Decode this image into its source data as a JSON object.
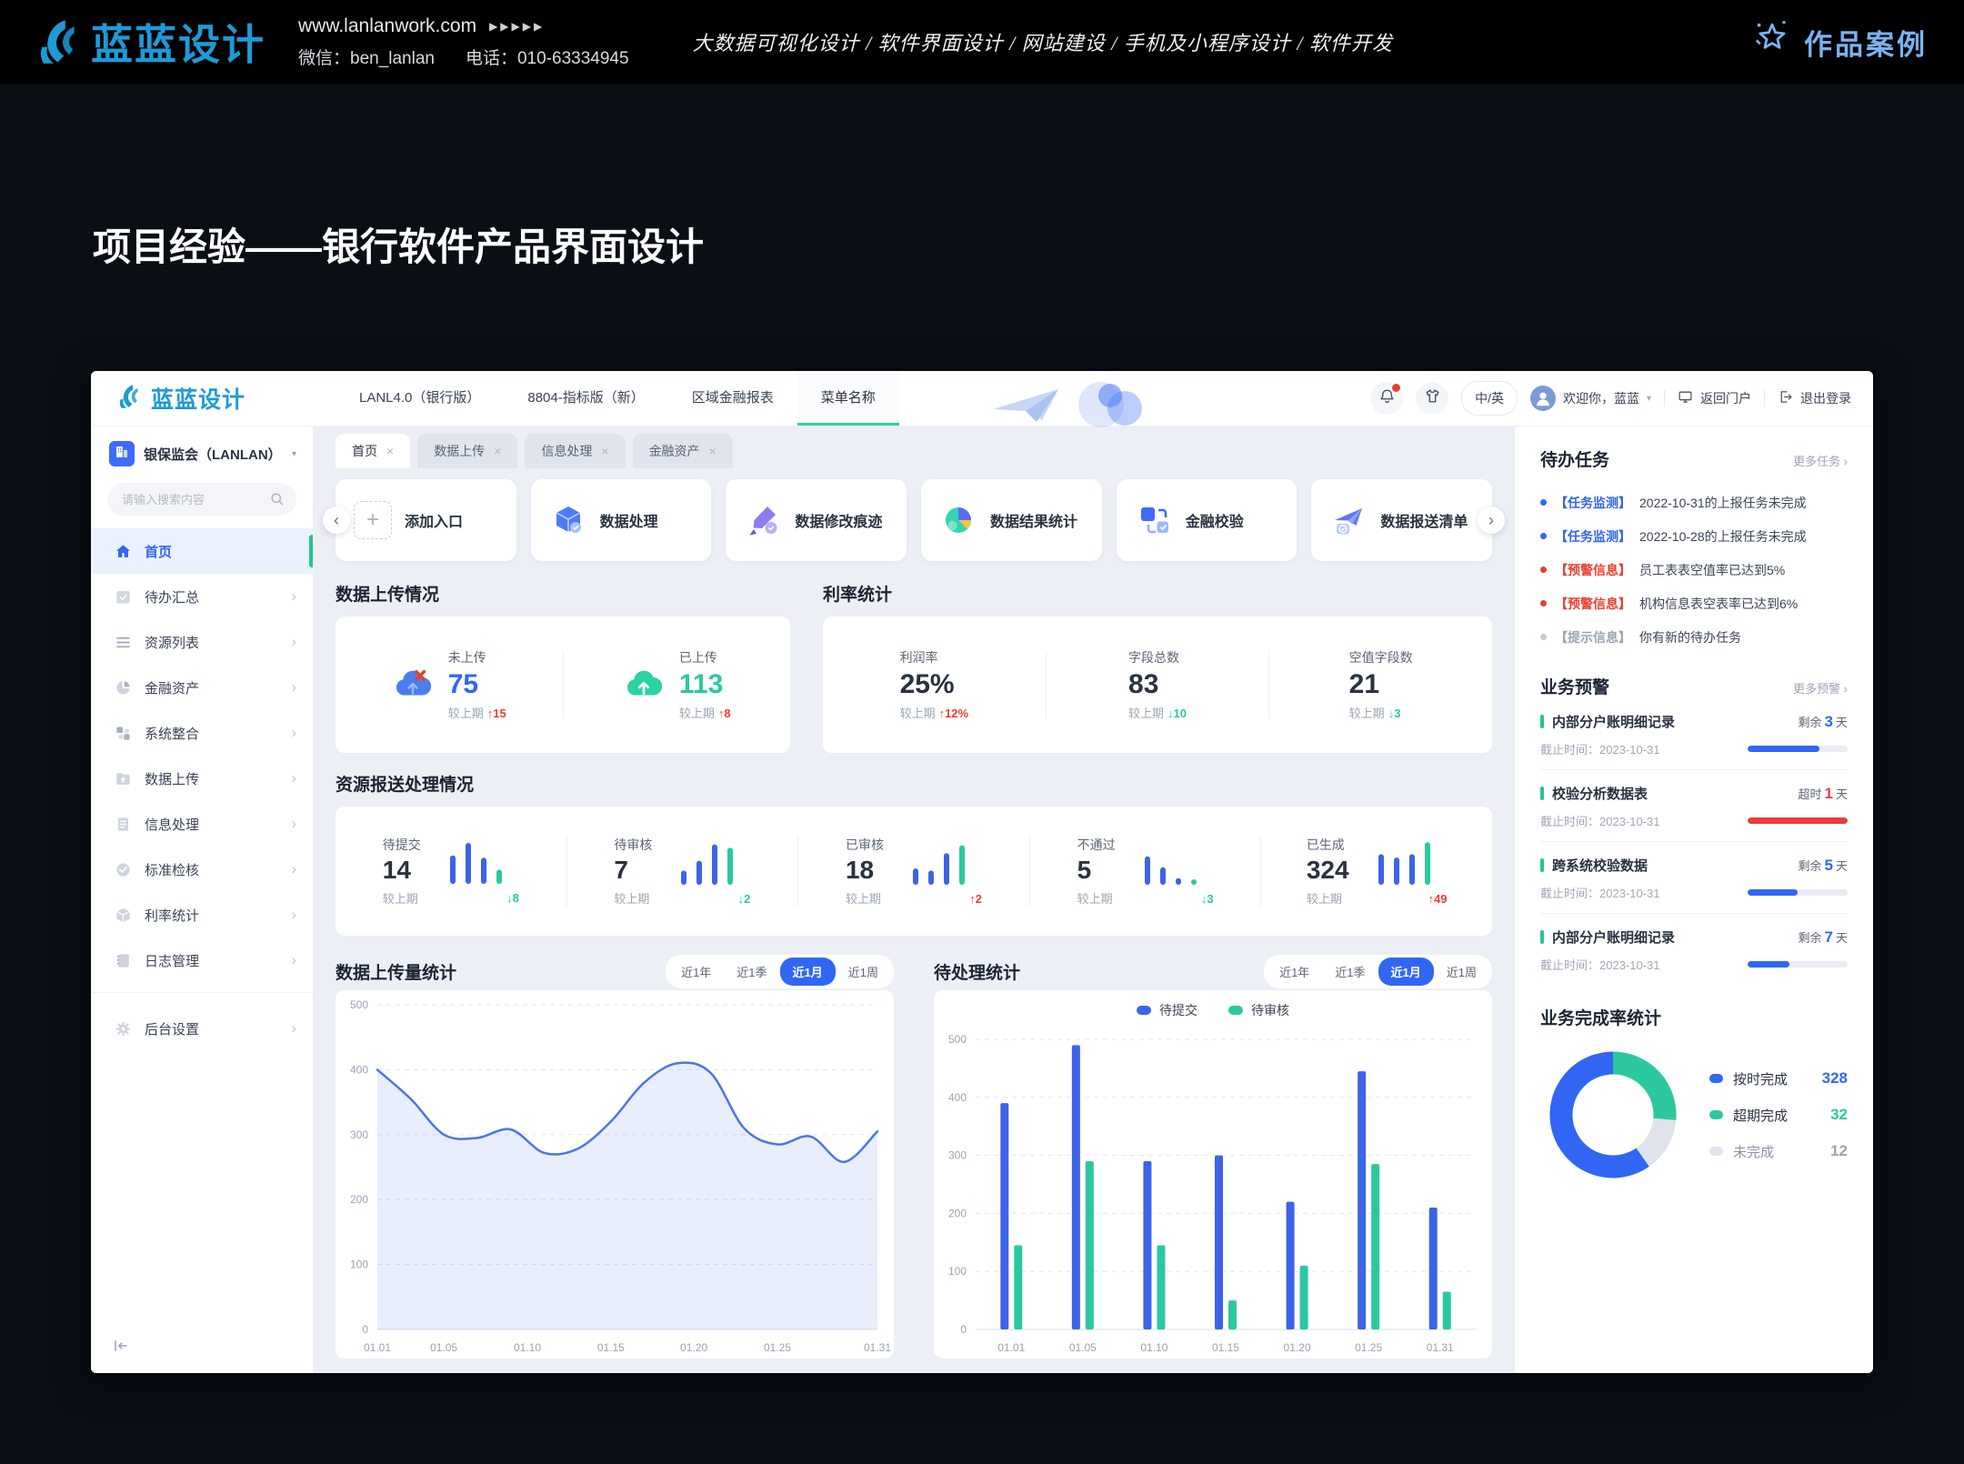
{
  "page_header": {
    "brand": "蓝蓝设计",
    "url": "www.lanlanwork.com",
    "url_arrows": "▶▶▶▶▶",
    "wechat": "微信：ben_lanlan",
    "phone": "电话：010-63334945",
    "services": "大数据可视化设计 / 软件界面设计 / 网站建设 / 手机及小程序设计 / 软件开发",
    "portfolio_label": "作品案例"
  },
  "page_title": "项目经验——银行软件产品界面设计",
  "colors": {
    "blue": "#3166F4",
    "green": "#2BC8A0",
    "red": "#E8402F",
    "gray": "#9AA4B2"
  },
  "app": {
    "topnav": {
      "brand": "蓝蓝设计",
      "items": [
        {
          "label": "LANL4.0（银行版）",
          "active": false
        },
        {
          "label": "8804-指标版（新）",
          "active": false
        },
        {
          "label": "区域金融报表",
          "active": false
        },
        {
          "label": "菜单名称",
          "active": true
        }
      ],
      "lang_toggle": "中/英",
      "welcome": "欢迎你，蓝蓝",
      "return_portal": "返回门户",
      "logout": "退出登录"
    },
    "sidebar": {
      "org": "银保监会（LANLAN）",
      "search_placeholder": "请输入搜索内容",
      "menu": [
        {
          "icon": "home",
          "label": "首页",
          "active": true
        },
        {
          "icon": "todo",
          "label": "待办汇总",
          "active": false
        },
        {
          "icon": "list",
          "label": "资源列表",
          "active": false
        },
        {
          "icon": "pie",
          "label": "金融资产",
          "active": false
        },
        {
          "icon": "integration",
          "label": "系统整合",
          "active": false
        },
        {
          "icon": "upload",
          "label": "数据上传",
          "active": false
        },
        {
          "icon": "doc",
          "label": "信息处理",
          "active": false
        },
        {
          "icon": "check",
          "label": "标准检核",
          "active": false
        },
        {
          "icon": "cube",
          "label": "利率统计",
          "active": false
        },
        {
          "icon": "log",
          "label": "日志管理",
          "active": false
        }
      ],
      "bottom_menu": [
        {
          "icon": "gear",
          "label": "后台设置",
          "active": false
        }
      ]
    },
    "tabs": [
      {
        "label": "首页",
        "active": true
      },
      {
        "label": "数据上传",
        "active": false
      },
      {
        "label": "信息处理",
        "active": false
      },
      {
        "label": "金融资产",
        "active": false
      }
    ],
    "quick_actions": [
      {
        "icon": "plus",
        "label": "添加入口"
      },
      {
        "icon": "cube3d",
        "label": "数据处理"
      },
      {
        "icon": "pen",
        "label": "数据修改痕迹"
      },
      {
        "icon": "piechart",
        "label": "数据结果统计"
      },
      {
        "icon": "squares",
        "label": "金融校验"
      },
      {
        "icon": "plane",
        "label": "数据报送清单"
      }
    ],
    "upload_section": {
      "title": "数据上传情况",
      "stats": [
        {
          "icon": "cloud-x",
          "label": "未上传",
          "value": "75",
          "value_color": "#3166F4",
          "trend_label": "较上期",
          "trend": "15",
          "dir": "up"
        },
        {
          "icon": "cloud-up",
          "label": "已上传",
          "value": "113",
          "value_color": "#2BC8A0",
          "trend_label": "较上期",
          "trend": "8",
          "dir": "up"
        }
      ]
    },
    "rate_section": {
      "title": "利率统计",
      "stats": [
        {
          "label": "利润率",
          "value": "25%",
          "value_color": "#2A3240",
          "trend_label": "较上期",
          "trend": "12%",
          "dir": "up"
        },
        {
          "label": "字段总数",
          "value": "83",
          "value_color": "#2A3240",
          "trend_label": "较上期",
          "trend": "10",
          "dir": "down"
        },
        {
          "label": "空值字段数",
          "value": "21",
          "value_color": "#2A3240",
          "trend_label": "较上期",
          "trend": "3",
          "dir": "down"
        }
      ]
    },
    "report_section": {
      "title": "资源报送处理情况",
      "stats": [
        {
          "label": "待提交",
          "value": "14",
          "trend_label": "较上期",
          "trend": "8",
          "dir": "down",
          "sparkline": {
            "values": [
              52,
              75,
              48,
              26
            ],
            "colors": [
              "#3D63E8",
              "#3D63E8",
              "#3D63E8",
              "#2BC8A0"
            ]
          }
        },
        {
          "label": "待审核",
          "value": "7",
          "trend_label": "较上期",
          "trend": "2",
          "dir": "down",
          "sparkline": {
            "values": [
              26,
              44,
              74,
              68
            ],
            "colors": [
              "#3D63E8",
              "#3D63E8",
              "#3D63E8",
              "#2BC8A0"
            ]
          }
        },
        {
          "label": "已审核",
          "value": "18",
          "trend_label": "较上期",
          "trend": "2",
          "dir": "up",
          "sparkline": {
            "values": [
              30,
              26,
              58,
              72
            ],
            "colors": [
              "#3D63E8",
              "#3D63E8",
              "#3D63E8",
              "#2BC8A0"
            ]
          }
        },
        {
          "label": "不通过",
          "value": "5",
          "trend_label": "较上期",
          "trend": "3",
          "dir": "down",
          "sparkline": {
            "values": [
              52,
              32,
              12,
              10
            ],
            "colors": [
              "#3D63E8",
              "#3D63E8",
              "#3D63E8",
              "#2BC8A0"
            ]
          }
        },
        {
          "label": "已生成",
          "value": "324",
          "trend_label": "较上期",
          "trend": "49",
          "dir": "up",
          "sparkline": {
            "values": [
              56,
              50,
              56,
              78
            ],
            "colors": [
              "#3D63E8",
              "#3D63E8",
              "#3D63E8",
              "#2BC8A0"
            ]
          }
        }
      ]
    },
    "chart_filters": {
      "labels": [
        "近1年",
        "近1季",
        "近1月",
        "近1周"
      ],
      "active_index": 2
    },
    "right_panel": {
      "todo": {
        "title": "待办任务",
        "more": "更多任务",
        "items": [
          {
            "dot": "#3166F4",
            "tag": "【任务监测】",
            "tag_color": "#3166F4",
            "text": "2022-10-31的上报任务未完成"
          },
          {
            "dot": "#3166F4",
            "tag": "【任务监测】",
            "tag_color": "#3166F4",
            "text": "2022-10-28的上报任务未完成"
          },
          {
            "dot": "#E8402F",
            "tag": "【预警信息】",
            "tag_color": "#E8402F",
            "text": "员工表表空值率已达到5%"
          },
          {
            "dot": "#E8402F",
            "tag": "【预警信息】",
            "tag_color": "#E8402F",
            "text": "机构信息表空表率已达到6%"
          },
          {
            "dot": "#C3CAD6",
            "tag": "【提示信息】",
            "tag_color": "#9AA4B2",
            "text": "你有新的待办任务"
          }
        ]
      },
      "warnings": {
        "title": "业务预警",
        "more": "更多预警",
        "items": [
          {
            "name": "内部分户账明细记录",
            "deadline": "截止时间：2023-10-31",
            "status_prefix": "剩余",
            "status_num": "3",
            "status_suffix": "天",
            "num_color": "#3166F4",
            "bar_color": "#3166F4",
            "progress": 0.72
          },
          {
            "name": "校验分析数据表",
            "deadline": "截止时间：2023-10-31",
            "status_prefix": "超时",
            "status_num": "1",
            "status_suffix": "天",
            "num_color": "#ED3B3B",
            "bar_color": "#ED3B3B",
            "progress": 1
          },
          {
            "name": "跨系统校验数据",
            "deadline": "截止时间：2023-10-31",
            "status_prefix": "剩余",
            "status_num": "5",
            "status_suffix": "天",
            "num_color": "#3166F4",
            "bar_color": "#3166F4",
            "progress": 0.5
          },
          {
            "name": "内部分户账明细记录",
            "deadline": "截止时间：2023-10-31",
            "status_prefix": "剩余",
            "status_num": "7",
            "status_suffix": "天",
            "num_color": "#3166F4",
            "bar_color": "#3166F4",
            "progress": 0.42
          }
        ]
      },
      "completion_title": "业务完成率统计"
    }
  },
  "chart_data": [
    {
      "id": "upload_volume",
      "type": "line",
      "title": "数据上传量统计",
      "x_tick_labels": [
        "01.01",
        "01.05",
        "01.10",
        "01.15",
        "01.20",
        "01.25",
        "01.31"
      ],
      "x_tick_pos": [
        0,
        0.133,
        0.3,
        0.467,
        0.633,
        0.8,
        1
      ],
      "values": [
        400,
        355,
        300,
        295,
        308,
        272,
        278,
        320,
        380,
        410,
        395,
        310,
        285,
        297,
        258,
        305
      ],
      "ylim": [
        0,
        500
      ],
      "yticks": [
        0,
        100,
        200,
        300,
        400,
        500
      ],
      "line_color": "#4D74E8",
      "fill": "rgba(77,116,232,0.12)",
      "grid": "dashed"
    },
    {
      "id": "pending",
      "type": "bar",
      "title": "待处理统计",
      "categories": [
        "01.01",
        "01.05",
        "01.10",
        "01.15",
        "01.20",
        "01.25",
        "01.31"
      ],
      "series": [
        {
          "name": "待提交",
          "color": "#3D63E8",
          "values": [
            390,
            490,
            290,
            300,
            220,
            445,
            210
          ]
        },
        {
          "name": "待审核",
          "color": "#2BC8A0",
          "values": [
            145,
            290,
            145,
            50,
            110,
            285,
            65
          ]
        }
      ],
      "ylim": [
        0,
        500
      ],
      "yticks": [
        0,
        100,
        200,
        300,
        400,
        500
      ],
      "legend_position": "top"
    },
    {
      "id": "completion",
      "type": "donut",
      "title": "业务完成率统计",
      "slices": [
        {
          "label": "按时完成",
          "value": 328,
          "color": "#3166F4",
          "value_color": "#3166F4",
          "label_color": "#2A3240",
          "arc_start_deg": 145,
          "arc_sweep_deg": 215
        },
        {
          "label": "超期完成",
          "value": 32,
          "color": "#2BC8A0",
          "value_color": "#2BC8A0",
          "label_color": "#2A3240",
          "arc_start_deg": 0,
          "arc_sweep_deg": 95
        },
        {
          "label": "未完成",
          "value": 12,
          "color": "#DFE3EB",
          "value_color": "#9AA4B2",
          "label_color": "#8A93A3",
          "arc_start_deg": 95,
          "arc_sweep_deg": 50
        }
      ]
    }
  ]
}
